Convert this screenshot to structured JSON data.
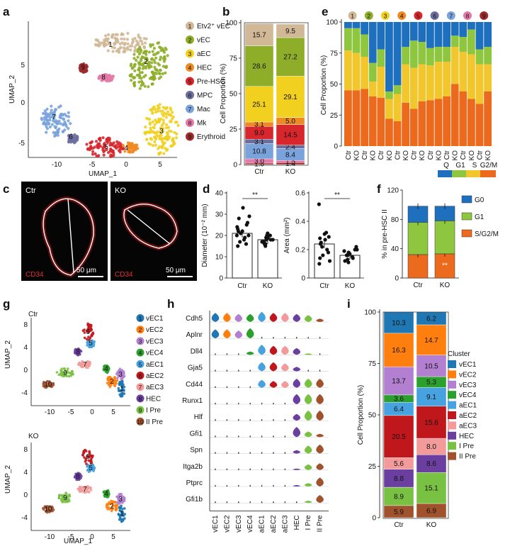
{
  "panel_letters": [
    "a",
    "b",
    "c",
    "d",
    "e",
    "f",
    "g",
    "h",
    "i"
  ],
  "colors": {
    "c1": "#d1b896",
    "c2": "#8eae2a",
    "c3": "#f1d01f",
    "c4": "#ef8a22",
    "c5": "#d7262c",
    "c6": "#6c6e9e",
    "c7": "#7aa3dc",
    "c8": "#e47aa8",
    "c9": "#9e2a2b",
    "Q": "#1f6fbf",
    "G1": "#8fc63f",
    "S": "#f2c72e",
    "G2M": "#ec6a1e",
    "vEC1": "#1f77b4",
    "vEC2": "#ff7f0e",
    "vEC3": "#b37fd0",
    "vEC4": "#2ca02c",
    "aEC1": "#47a2e0",
    "aEC2": "#c0171d",
    "aEC3": "#f39b9b",
    "HEC": "#6a3fa0",
    "IPre": "#79c143",
    "IIPre": "#a0522d"
  },
  "panel_a": {
    "xlabel": "UMAP_1",
    "ylabel": "UMAP_2",
    "xticks": [
      "-10",
      "-5",
      "0",
      "5"
    ],
    "yticks": [
      "5",
      "0",
      "-5"
    ],
    "legend": [
      {
        "num": "1",
        "label": "Etv2⁺ vEC",
        "key": "c1"
      },
      {
        "num": "2",
        "label": "vEC",
        "key": "c2"
      },
      {
        "num": "3",
        "label": "aEC",
        "key": "c3"
      },
      {
        "num": "4",
        "label": "HEC",
        "key": "c4"
      },
      {
        "num": "5",
        "label": "Pre-HSC",
        "key": "c5"
      },
      {
        "num": "6",
        "label": "MPC",
        "key": "c6"
      },
      {
        "num": "7",
        "label": "Mac",
        "key": "c7"
      },
      {
        "num": "8",
        "label": "Mk",
        "key": "c8"
      },
      {
        "num": "9",
        "label": "Erythroid",
        "key": "c9"
      }
    ]
  },
  "chart_data": [
    {
      "id": "b",
      "type": "bar",
      "stacked": true,
      "ylabel": "Cell Proportion (%)",
      "categories": [
        "Ctr",
        "KO"
      ],
      "ylim": [
        0,
        100
      ],
      "yticks": [
        "0",
        "25",
        "50",
        "75",
        "100"
      ],
      "series": [
        {
          "key": "c9",
          "values": [
            1.0,
            1.4
          ],
          "labels": [
            "1.0",
            "1.4"
          ]
        },
        {
          "key": "c8",
          "values": [
            3.0,
            1.5
          ],
          "labels": [
            "3.0",
            "1.5"
          ]
        },
        {
          "key": "c7",
          "values": [
            10.8,
            8.4
          ],
          "labels": [
            "10.8",
            "8.4"
          ]
        },
        {
          "key": "c6",
          "values": [
            3.1,
            2.4
          ],
          "labels": [
            "3.1",
            "2.4"
          ]
        },
        {
          "key": "c5",
          "values": [
            9.0,
            14.5
          ],
          "labels": [
            "9.0",
            "14.5"
          ]
        },
        {
          "key": "c4",
          "values": [
            3.1,
            5.0
          ],
          "labels": [
            "3.1",
            "5.0"
          ]
        },
        {
          "key": "c3",
          "values": [
            25.1,
            29.1
          ],
          "labels": [
            "25.1",
            "29.1"
          ]
        },
        {
          "key": "c2",
          "values": [
            28.6,
            27.2
          ],
          "labels": [
            "28.6",
            "27.2"
          ]
        },
        {
          "key": "c1",
          "values": [
            15.7,
            9.5
          ],
          "labels": [
            "15.7",
            "9.5"
          ]
        }
      ]
    },
    {
      "id": "e",
      "type": "bar",
      "stacked": true,
      "ylabel": "Cell Proportion (%)",
      "ylim": [
        0,
        100
      ],
      "yticks": [
        "0",
        "25",
        "50",
        "75",
        "100"
      ],
      "groups": [
        "1",
        "2",
        "3",
        "4",
        "5",
        "6",
        "7",
        "8",
        "9"
      ],
      "group_keys": [
        "c1",
        "c2",
        "c3",
        "c4",
        "c5",
        "c6",
        "c7",
        "c8",
        "c9"
      ],
      "categories": [
        "Ctr",
        "KO",
        "Ctr",
        "KO",
        "Ctr",
        "KO",
        "Ctr",
        "KO",
        "Ctr",
        "KO",
        "Ctr",
        "KO",
        "Ctr",
        "KO",
        "Ctr",
        "KO",
        "Ctr",
        "KO"
      ],
      "G2M": [
        45,
        45,
        46,
        40,
        39,
        22,
        20,
        35,
        30,
        36,
        37,
        38,
        40,
        50,
        44,
        38,
        34,
        44
      ],
      "S": [
        32,
        30,
        26,
        12,
        25,
        16,
        22,
        31,
        33,
        30,
        28,
        30,
        28,
        30,
        32,
        36,
        32,
        22
      ],
      "G1": [
        18,
        20,
        18,
        15,
        14,
        6,
        7,
        14,
        22,
        18,
        14,
        12,
        12,
        9,
        12,
        20,
        12,
        14
      ],
      "legend": [
        "Q",
        "G1",
        "S",
        "G2/M"
      ],
      "legend_keys": [
        "Q",
        "G1",
        "S",
        "G2M"
      ]
    },
    {
      "id": "d1",
      "type": "scatter",
      "ylabel": "Diameter (10⁻² mm)",
      "categories": [
        "Ctr",
        "KO"
      ],
      "ylim": [
        0,
        40
      ],
      "yticks": [
        "0",
        "10",
        "20",
        "30",
        "40"
      ],
      "means": [
        21,
        18
      ],
      "sig": "**",
      "points": [
        [
          20,
          18,
          22,
          25,
          33,
          28,
          22,
          17,
          19,
          16,
          21,
          23,
          26,
          24,
          15,
          20,
          29
        ],
        [
          17,
          18,
          19,
          16,
          20,
          18,
          15,
          17,
          19,
          21,
          16,
          18,
          17,
          20,
          19
        ]
      ]
    },
    {
      "id": "d2",
      "type": "scatter",
      "ylabel": "Area (mm²)",
      "categories": [
        "Ctr",
        "KO"
      ],
      "ylim": [
        0,
        0.6
      ],
      "yticks": [
        "0",
        "0.2",
        "0.4",
        "0.6"
      ],
      "means": [
        0.24,
        0.16
      ],
      "sig": "**",
      "points": [
        [
          0.52,
          0.32,
          0.31,
          0.29,
          0.27,
          0.25,
          0.24,
          0.22,
          0.2,
          0.18,
          0.16,
          0.14,
          0.12,
          0.1,
          0.28
        ],
        [
          0.22,
          0.2,
          0.19,
          0.18,
          0.17,
          0.16,
          0.15,
          0.14,
          0.13,
          0.12,
          0.11,
          0.17,
          0.16,
          0.2
        ]
      ]
    },
    {
      "id": "f",
      "type": "bar",
      "stacked": true,
      "ylabel": "% in pre-HSC II",
      "categories": [
        "Ctr",
        "KO"
      ],
      "ylim": [
        0,
        120
      ],
      "yticks": [
        "0",
        "40",
        "80",
        "120"
      ],
      "series": [
        {
          "name": "S/G2/M",
          "key": "G2M",
          "values": [
            32,
            33
          ]
        },
        {
          "name": "G1",
          "key": "G1",
          "values": [
            44,
            45
          ]
        },
        {
          "name": "G0",
          "key": "Q",
          "values": [
            22,
            20
          ]
        }
      ],
      "annotation": "**"
    },
    {
      "id": "i",
      "type": "bar",
      "stacked": true,
      "ylabel": "Cell Proportion (%)",
      "categories": [
        "Ctr",
        "KO"
      ],
      "ylim": [
        0,
        100
      ],
      "yticks": [
        "0",
        "25",
        "50",
        "75",
        "100"
      ],
      "legend_title": "Cluster",
      "series": [
        {
          "name": "II Pre",
          "key": "IIPre",
          "values": [
            5.9,
            6.9
          ],
          "labels": [
            "5.9",
            "6.9"
          ]
        },
        {
          "name": "I Pre",
          "key": "IPre",
          "values": [
            8.9,
            15.1
          ],
          "labels": [
            "8.9",
            "15.1"
          ]
        },
        {
          "name": "HEC",
          "key": "HEC",
          "values": [
            8.8,
            8.6
          ],
          "labels": [
            "8.8",
            "8.6"
          ]
        },
        {
          "name": "aEC3",
          "key": "aEC3",
          "values": [
            5.6,
            8.0
          ],
          "labels": [
            "5.6",
            "8.0"
          ]
        },
        {
          "name": "aEC2",
          "key": "aEC2",
          "values": [
            20.5,
            15.6
          ],
          "labels": [
            "20.5",
            "15.6"
          ]
        },
        {
          "name": "aEC1",
          "key": "aEC1",
          "values": [
            6.4,
            9.1
          ],
          "labels": [
            "6.4",
            "9.1"
          ]
        },
        {
          "name": "vEC4",
          "key": "vEC4",
          "values": [
            3.6,
            5.3
          ],
          "labels": [
            "3.6",
            "5.3"
          ]
        },
        {
          "name": "vEC3",
          "key": "vEC3",
          "values": [
            13.7,
            10.5
          ],
          "labels": [
            "13.7",
            "10.5"
          ]
        },
        {
          "name": "vEC2",
          "key": "vEC2",
          "values": [
            16.3,
            14.7
          ],
          "labels": [
            "16.3",
            "14.7"
          ]
        },
        {
          "name": "vEC1",
          "key": "vEC1",
          "values": [
            10.3,
            6.2
          ],
          "labels": [
            "10.3",
            "6.2"
          ]
        }
      ]
    }
  ],
  "panel_c": {
    "left_label": "Ctr",
    "right_label": "KO",
    "marker": "CD34",
    "scale": "50 μm"
  },
  "panel_g": {
    "xlabel": "UMAP_1",
    "ylabel": "UMAP_2",
    "top_label": "Ctr",
    "bottom_label": "KO",
    "xticks": [
      "-10",
      "-5",
      "0",
      "5"
    ],
    "yticks": [
      "8",
      "4",
      "0",
      "-4"
    ],
    "legend": [
      {
        "num": "1",
        "label": "vEC1",
        "key": "vEC1"
      },
      {
        "num": "2",
        "label": "vEC2",
        "key": "vEC2"
      },
      {
        "num": "3",
        "label": "vEC3",
        "key": "vEC3"
      },
      {
        "num": "4",
        "label": "vEC4",
        "key": "vEC4"
      },
      {
        "num": "5",
        "label": "aEC1",
        "key": "aEC1"
      },
      {
        "num": "6",
        "label": "aEC2",
        "key": "aEC2"
      },
      {
        "num": "7",
        "label": "aEC3",
        "key": "aEC3"
      },
      {
        "num": "8",
        "label": "HEC",
        "key": "HEC"
      },
      {
        "num": "9",
        "label": "I Pre",
        "key": "IPre"
      },
      {
        "num": "10",
        "label": "II Pre",
        "key": "IIPre"
      }
    ]
  },
  "panel_h": {
    "genes": [
      "Cdh5",
      "Aplnr",
      "Dll4",
      "Gja5",
      "Cd44",
      "Runx1",
      "Hlf",
      "Gfi1",
      "Spn",
      "Itga2b",
      "Ptprc",
      "Gfi1b"
    ],
    "clusters": [
      "vEC1",
      "vEC2",
      "vEC3",
      "vEC4",
      "aEC1",
      "aEC2",
      "aEC3",
      "HEC",
      "I Pre",
      "II Pre"
    ],
    "cluster_keys": [
      "vEC1",
      "vEC2",
      "vEC3",
      "vEC4",
      "aEC1",
      "aEC2",
      "aEC3",
      "HEC",
      "IPre",
      "IIPre"
    ],
    "expression": [
      [
        0.8,
        0.8,
        0.7,
        0.7,
        0.9,
        0.8,
        0.8,
        0.7,
        0.6,
        0.3
      ],
      [
        0.8,
        0.8,
        0.7,
        0.9,
        0.05,
        0.05,
        0.05,
        0.05,
        0.05,
        0.05
      ],
      [
        0.05,
        0.05,
        0.05,
        0.3,
        0.9,
        0.8,
        0.8,
        0.6,
        0.1,
        0.05
      ],
      [
        0.05,
        0.05,
        0.05,
        0.05,
        0.8,
        0.8,
        0.7,
        0.4,
        0.05,
        0.05
      ],
      [
        0.05,
        0.05,
        0.05,
        0.05,
        0.7,
        0.6,
        0.6,
        0.8,
        0.8,
        0.8
      ],
      [
        0.05,
        0.05,
        0.05,
        0.05,
        0.05,
        0.05,
        0.05,
        0.9,
        0.9,
        0.9
      ],
      [
        0.05,
        0.05,
        0.05,
        0.05,
        0.05,
        0.05,
        0.05,
        0.6,
        0.9,
        0.9
      ],
      [
        0.05,
        0.05,
        0.05,
        0.05,
        0.05,
        0.05,
        0.05,
        0.9,
        0.5,
        0.3
      ],
      [
        0.05,
        0.05,
        0.05,
        0.05,
        0.05,
        0.05,
        0.05,
        0.3,
        0.7,
        0.8
      ],
      [
        0.05,
        0.05,
        0.05,
        0.05,
        0.05,
        0.05,
        0.05,
        0.1,
        0.5,
        0.6
      ],
      [
        0.05,
        0.05,
        0.05,
        0.05,
        0.05,
        0.05,
        0.05,
        0.1,
        0.3,
        0.8
      ],
      [
        0.05,
        0.05,
        0.05,
        0.05,
        0.05,
        0.05,
        0.05,
        0.05,
        0.2,
        0.7
      ]
    ]
  }
}
